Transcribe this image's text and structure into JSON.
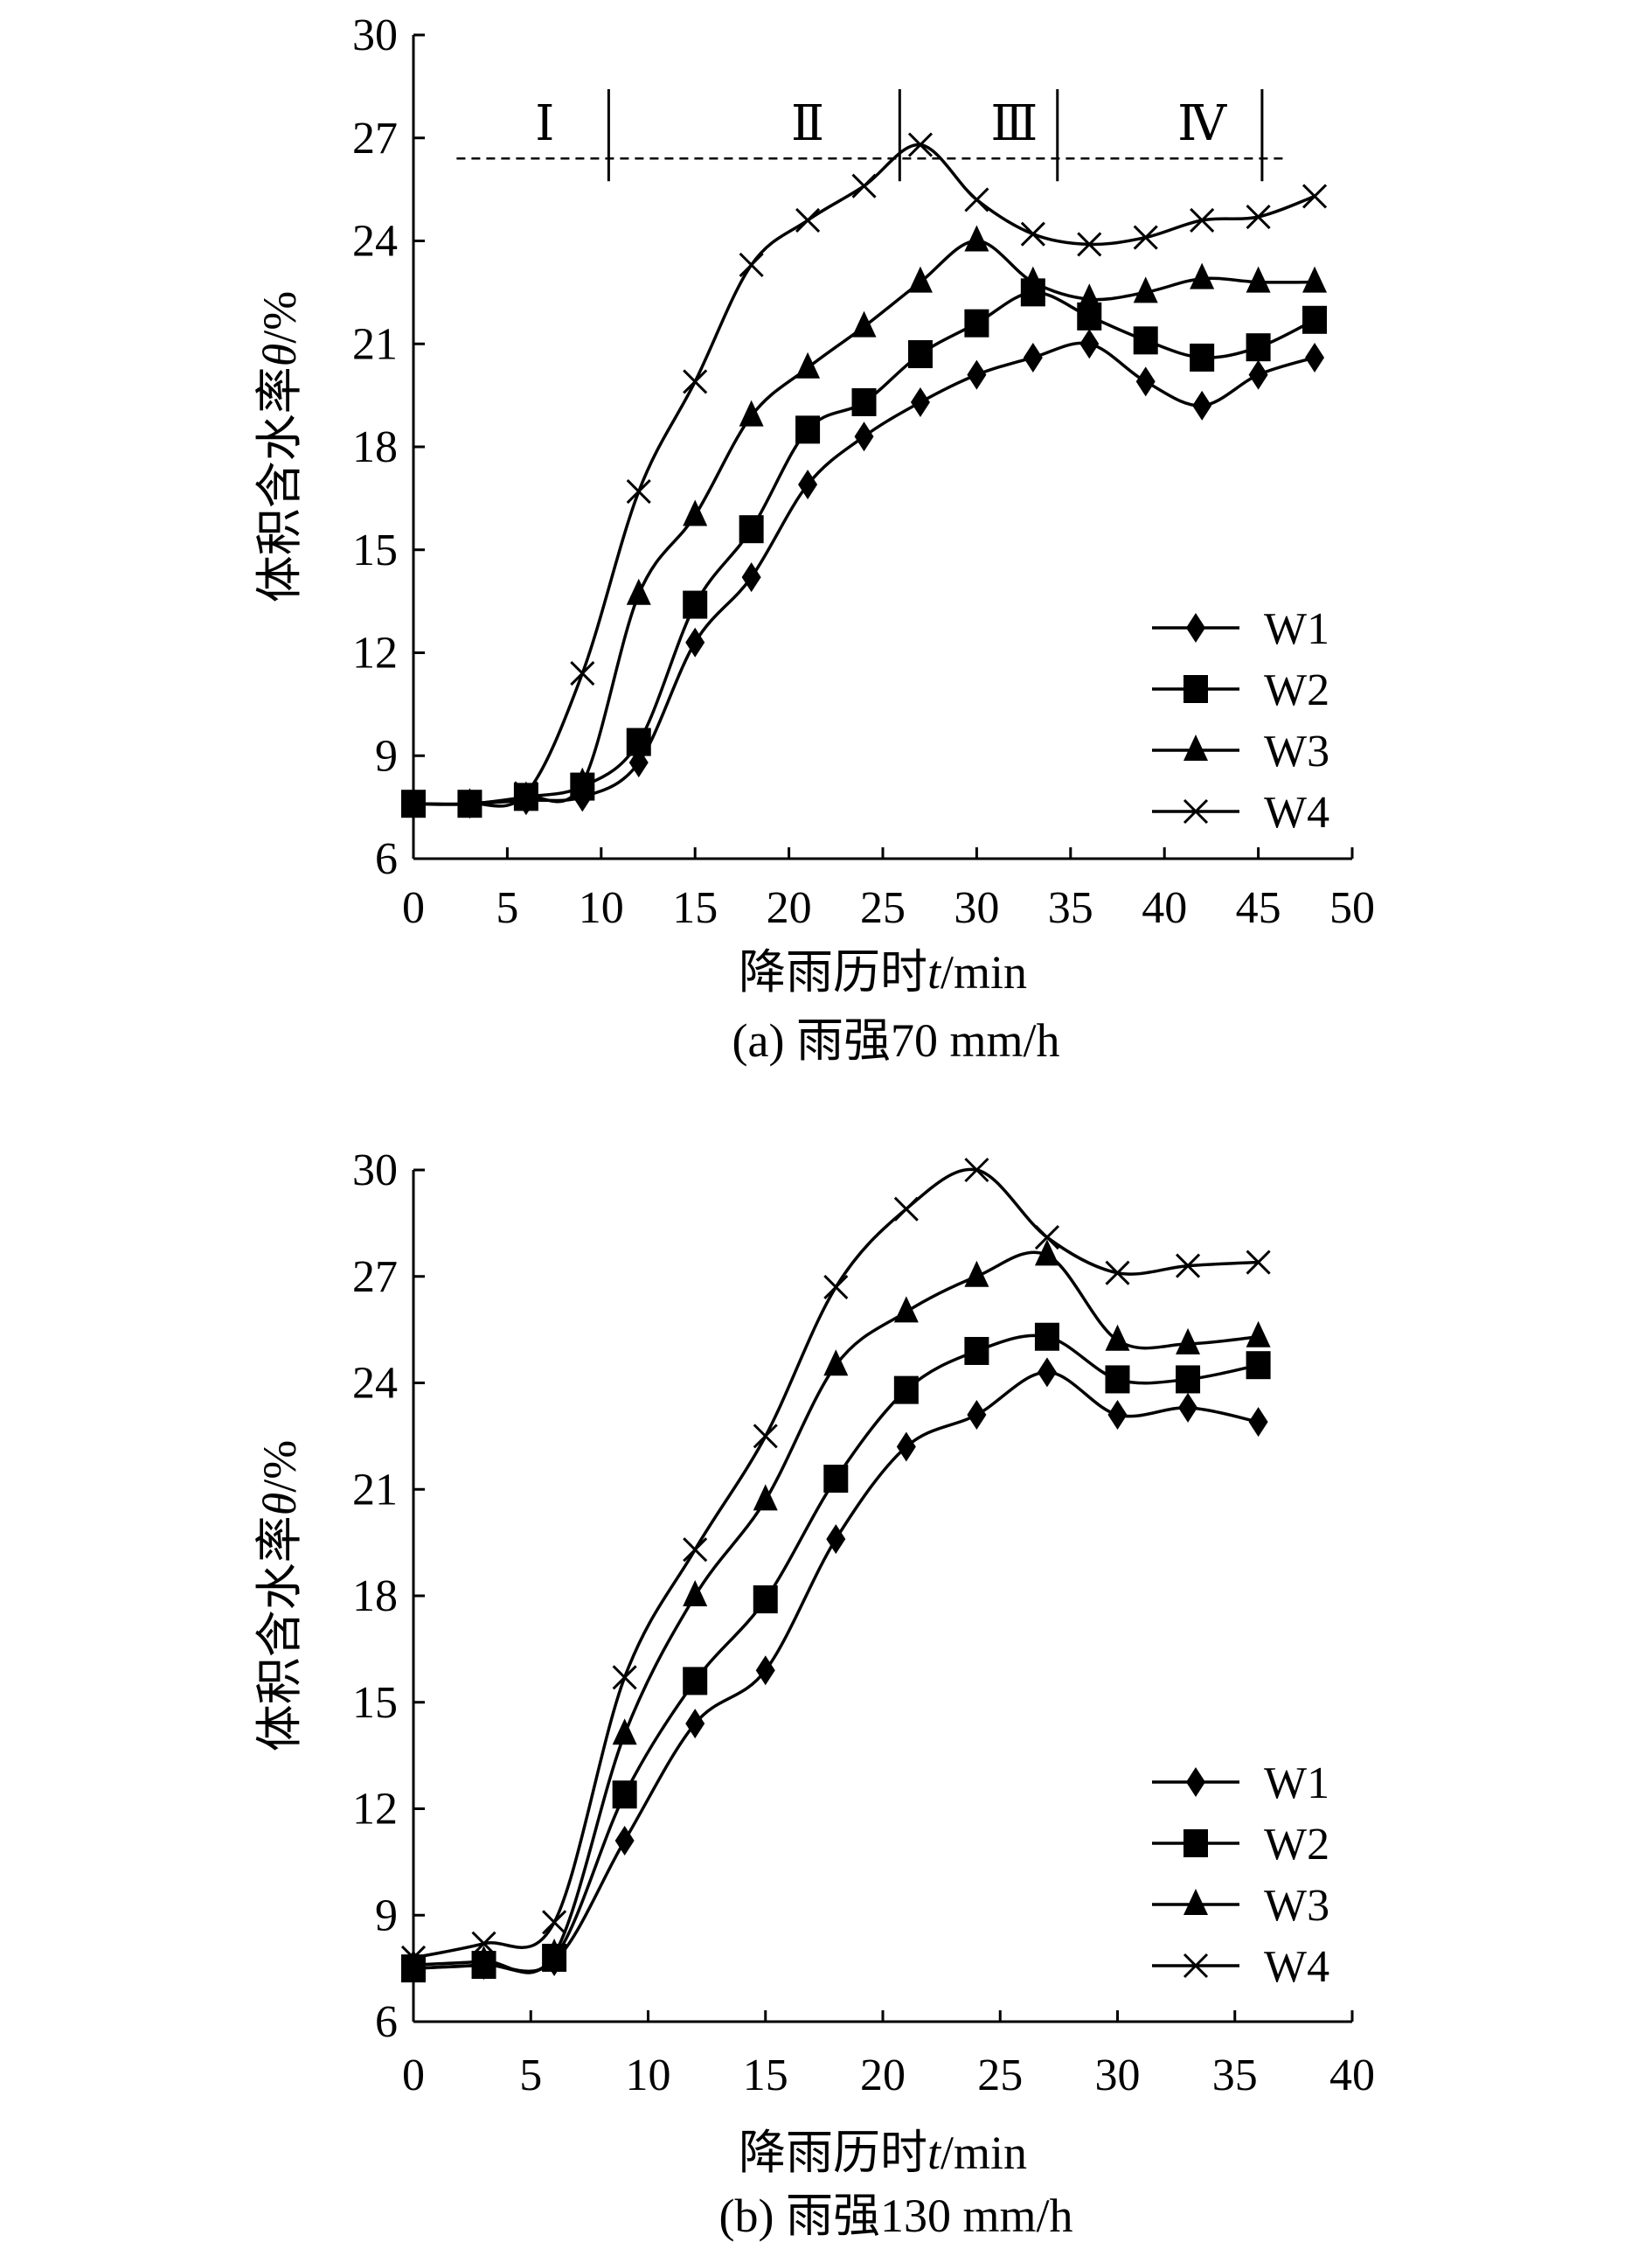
{
  "chart_data": [
    {
      "type": "line",
      "caption": "(a) 雨强70 mm/h",
      "xlabel_main": "降雨历时",
      "xlabel_var": "t",
      "xlabel_unit": "/min",
      "ylabel_main": "体积含水率",
      "ylabel_var": "θ",
      "ylabel_unit": "/%",
      "xlim": [
        0,
        50
      ],
      "ylim": [
        6,
        30
      ],
      "xticks": [
        "0",
        "5",
        "10",
        "15",
        "20",
        "25",
        "30",
        "35",
        "40",
        "45",
        "50"
      ],
      "yticks": [
        "6",
        "9",
        "12",
        "15",
        "18",
        "21",
        "24",
        "27",
        "30"
      ],
      "grid": false,
      "legend_position": "lower-right",
      "x": [
        0,
        3,
        6,
        9,
        12,
        15,
        18,
        21,
        24,
        27,
        30,
        33,
        36,
        39,
        42,
        45,
        48
      ],
      "series": [
        {
          "name": "W1",
          "marker": "diamond",
          "values": [
            7.6,
            7.6,
            7.7,
            7.8,
            8.8,
            12.3,
            14.2,
            16.9,
            18.3,
            19.3,
            20.1,
            20.6,
            21.0,
            19.9,
            19.2,
            20.1,
            20.6
          ]
        },
        {
          "name": "W2",
          "marker": "square",
          "values": [
            7.6,
            7.6,
            7.8,
            8.1,
            9.4,
            13.4,
            15.6,
            18.5,
            19.3,
            20.7,
            21.6,
            22.5,
            21.8,
            21.1,
            20.6,
            20.9,
            21.7
          ]
        },
        {
          "name": "W3",
          "marker": "triangle",
          "values": [
            7.6,
            7.6,
            7.8,
            8.2,
            13.7,
            16.0,
            18.9,
            20.3,
            21.5,
            22.8,
            24.0,
            22.8,
            22.3,
            22.5,
            22.9,
            22.8,
            22.8
          ]
        },
        {
          "name": "W4",
          "marker": "x",
          "values": [
            7.6,
            7.6,
            7.9,
            11.4,
            16.7,
            19.9,
            23.3,
            24.6,
            25.6,
            26.8,
            25.2,
            24.2,
            23.9,
            24.1,
            24.6,
            24.7,
            25.3
          ]
        }
      ],
      "stages": {
        "labels": [
          "Ⅰ",
          "Ⅱ",
          "Ⅲ",
          "Ⅳ"
        ],
        "label_x": [
          7,
          21,
          32,
          42
        ],
        "boundaries_x": [
          10.4,
          25.9,
          34.3,
          45.2
        ],
        "level_y": 26.4,
        "range_x": [
          2.3,
          46.5
        ]
      }
    },
    {
      "type": "line",
      "caption": "(b) 雨强130 mm/h",
      "xlabel_main": "降雨历时",
      "xlabel_var": "t",
      "xlabel_unit": "/min",
      "ylabel_main": "体积含水率",
      "ylabel_var": "θ",
      "ylabel_unit": "/%",
      "xlim": [
        0,
        40
      ],
      "ylim": [
        6,
        30
      ],
      "xticks": [
        "0",
        "5",
        "10",
        "15",
        "20",
        "25",
        "30",
        "35",
        "40"
      ],
      "yticks": [
        "6",
        "9",
        "12",
        "15",
        "18",
        "21",
        "24",
        "27",
        "30"
      ],
      "grid": false,
      "legend_position": "lower-right",
      "x": [
        0,
        3,
        6,
        9,
        12,
        15,
        18,
        21,
        24,
        27,
        30,
        33,
        36
      ],
      "series": [
        {
          "name": "W1",
          "marker": "diamond",
          "values": [
            7.5,
            7.6,
            7.7,
            11.1,
            14.4,
            15.9,
            19.6,
            22.2,
            23.1,
            24.3,
            23.1,
            23.3,
            22.9
          ]
        },
        {
          "name": "W2",
          "marker": "square",
          "values": [
            7.5,
            7.6,
            7.8,
            12.4,
            15.6,
            17.9,
            21.3,
            23.8,
            24.9,
            25.3,
            24.1,
            24.1,
            24.5
          ]
        },
        {
          "name": "W3",
          "marker": "triangle",
          "values": [
            7.6,
            7.7,
            7.9,
            14.1,
            18.0,
            20.7,
            24.5,
            26.0,
            27.0,
            27.6,
            25.2,
            25.1,
            25.3
          ]
        },
        {
          "name": "W4",
          "marker": "x",
          "values": [
            7.8,
            8.2,
            8.8,
            15.7,
            19.3,
            22.5,
            26.7,
            28.9,
            30.0,
            28.1,
            27.1,
            27.3,
            27.4
          ]
        }
      ]
    }
  ]
}
